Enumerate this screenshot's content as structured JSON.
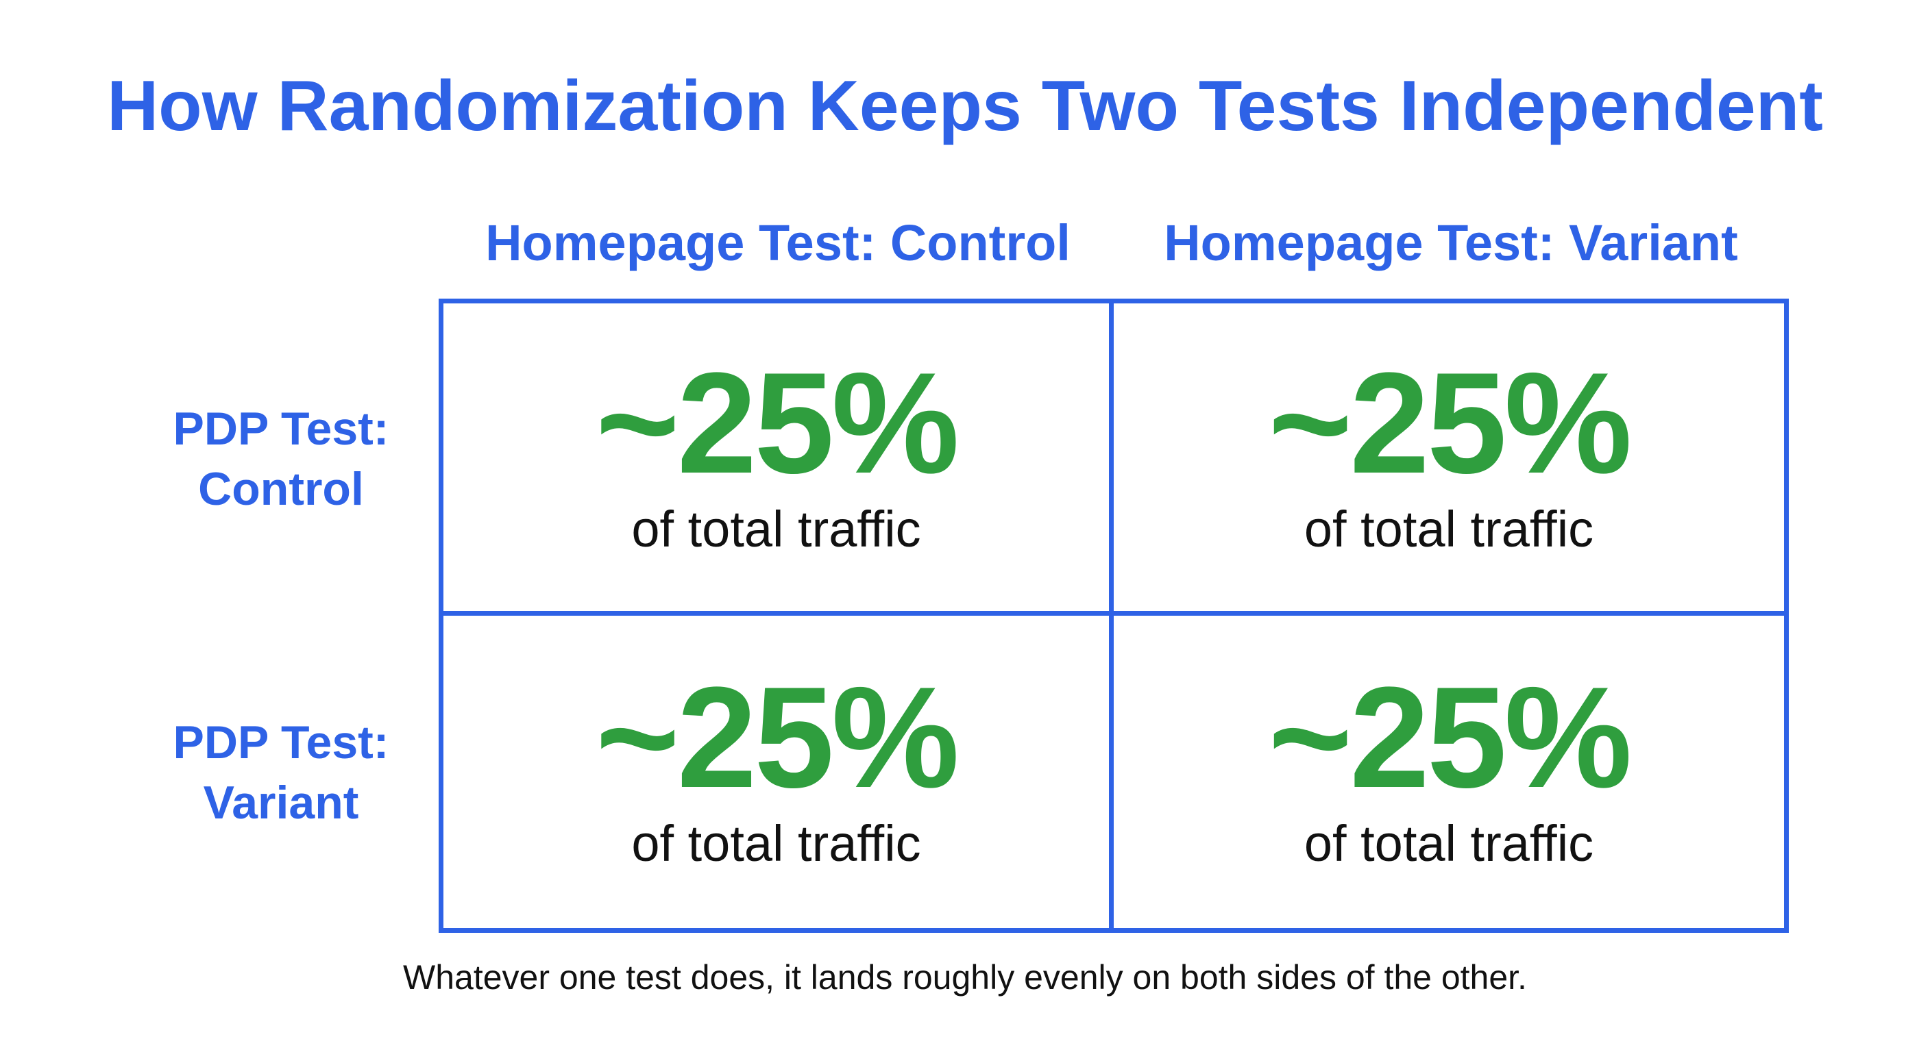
{
  "title": "How Randomization Keeps Two Tests Independent",
  "columns": [
    {
      "label": "Homepage Test: Control"
    },
    {
      "label": "Homepage Test: Variant"
    }
  ],
  "rows": [
    {
      "line1": "PDP Test:",
      "line2": "Control"
    },
    {
      "line1": "PDP Test:",
      "line2": "Variant"
    }
  ],
  "cells": [
    [
      {
        "value": "~25%",
        "label": "of total traffic"
      },
      {
        "value": "~25%",
        "label": "of total traffic"
      }
    ],
    [
      {
        "value": "~25%",
        "label": "of total traffic"
      },
      {
        "value": "~25%",
        "label": "of total traffic"
      }
    ]
  ],
  "footer": "Whatever one test does, it lands roughly evenly on both sides of the other.",
  "colors": {
    "accent": "#2e62e6",
    "value": "#2f9e3e",
    "text": "#111111"
  }
}
